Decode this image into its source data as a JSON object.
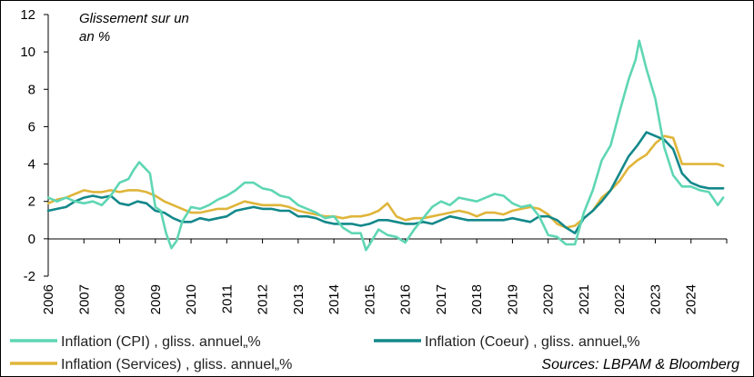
{
  "chart_data": {
    "type": "line",
    "annotation": [
      "Glissement sur un",
      "an %"
    ],
    "source": "Sources: LBPAM & Bloomberg",
    "ylim": [
      -2,
      12
    ],
    "xlim": [
      2006,
      2025
    ],
    "y_ticks": [
      "12",
      "10",
      "8",
      "6",
      "4",
      "2",
      "0",
      "-2"
    ],
    "x_ticks": [
      "2006",
      "2007",
      "2008",
      "2009",
      "2010",
      "2011",
      "2012",
      "2013",
      "2014",
      "2015",
      "2016",
      "2017",
      "2018",
      "2019",
      "2020",
      "2021",
      "2022",
      "2023",
      "2024"
    ],
    "grid": false,
    "series": [
      {
        "name": "Inflation (CPI) , gliss. annuel„%",
        "color": "#5fd6b4",
        "x": [
          2006.0,
          2006.25,
          2006.5,
          2006.75,
          2007.0,
          2007.25,
          2007.5,
          2007.75,
          2008.0,
          2008.25,
          2008.4,
          2008.55,
          2008.7,
          2008.85,
          2009.0,
          2009.15,
          2009.3,
          2009.45,
          2009.6,
          2009.75,
          2010.0,
          2010.25,
          2010.5,
          2010.75,
          2011.0,
          2011.25,
          2011.5,
          2011.75,
          2012.0,
          2012.25,
          2012.5,
          2012.75,
          2013.0,
          2013.25,
          2013.5,
          2013.75,
          2014.0,
          2014.25,
          2014.5,
          2014.75,
          2014.9,
          2015.0,
          2015.25,
          2015.5,
          2015.75,
          2016.0,
          2016.25,
          2016.5,
          2016.75,
          2017.0,
          2017.25,
          2017.5,
          2017.75,
          2018.0,
          2018.25,
          2018.5,
          2018.75,
          2019.0,
          2019.25,
          2019.5,
          2019.75,
          2020.0,
          2020.25,
          2020.5,
          2020.75,
          2021.0,
          2021.25,
          2021.5,
          2021.75,
          2022.0,
          2022.25,
          2022.45,
          2022.55,
          2022.75,
          2023.0,
          2023.25,
          2023.5,
          2023.75,
          2024.0,
          2024.25,
          2024.5,
          2024.75,
          2024.9
        ],
        "values": [
          2.2,
          2.0,
          2.2,
          2.0,
          1.9,
          2.0,
          1.8,
          2.3,
          3.0,
          3.2,
          3.7,
          4.1,
          3.8,
          3.5,
          1.7,
          1.5,
          0.3,
          -0.5,
          -0.1,
          0.9,
          1.7,
          1.6,
          1.8,
          2.1,
          2.3,
          2.6,
          3.0,
          3.0,
          2.7,
          2.6,
          2.3,
          2.2,
          1.8,
          1.6,
          1.4,
          1.1,
          1.2,
          0.6,
          0.3,
          0.3,
          -0.6,
          -0.3,
          0.5,
          0.2,
          0.1,
          -0.2,
          0.5,
          1.1,
          1.7,
          2.0,
          1.8,
          2.2,
          2.1,
          2.0,
          2.2,
          2.4,
          2.3,
          1.9,
          1.7,
          1.8,
          1.2,
          0.2,
          0.1,
          -0.3,
          -0.3,
          1.4,
          2.6,
          4.2,
          5.0,
          6.8,
          8.5,
          9.6,
          10.6,
          9.1,
          7.5,
          4.9,
          3.4,
          2.8,
          2.8,
          2.6,
          2.5,
          1.8,
          2.2
        ]
      },
      {
        "name": "Inflation (Coeur) , gliss. annuel„%",
        "color": "#13888a",
        "x": [
          2006.0,
          2006.25,
          2006.5,
          2006.75,
          2007.0,
          2007.25,
          2007.5,
          2007.75,
          2008.0,
          2008.25,
          2008.5,
          2008.75,
          2009.0,
          2009.25,
          2009.5,
          2009.75,
          2010.0,
          2010.25,
          2010.5,
          2010.75,
          2011.0,
          2011.25,
          2011.5,
          2011.75,
          2012.0,
          2012.25,
          2012.5,
          2012.75,
          2013.0,
          2013.25,
          2013.5,
          2013.75,
          2014.0,
          2014.25,
          2014.5,
          2014.75,
          2015.0,
          2015.25,
          2015.5,
          2015.75,
          2016.0,
          2016.25,
          2016.5,
          2016.75,
          2017.0,
          2017.25,
          2017.5,
          2017.75,
          2018.0,
          2018.25,
          2018.5,
          2018.75,
          2019.0,
          2019.25,
          2019.5,
          2019.75,
          2020.0,
          2020.25,
          2020.5,
          2020.75,
          2021.0,
          2021.25,
          2021.5,
          2021.75,
          2022.0,
          2022.25,
          2022.5,
          2022.75,
          2023.0,
          2023.25,
          2023.5,
          2023.75,
          2024.0,
          2024.25,
          2024.5,
          2024.75,
          2024.9
        ],
        "values": [
          1.5,
          1.6,
          1.7,
          2.0,
          2.2,
          2.3,
          2.2,
          2.3,
          1.9,
          1.8,
          2.0,
          1.9,
          1.5,
          1.4,
          1.1,
          0.9,
          0.9,
          1.1,
          1.0,
          1.1,
          1.2,
          1.5,
          1.6,
          1.7,
          1.6,
          1.6,
          1.5,
          1.5,
          1.2,
          1.2,
          1.1,
          0.9,
          0.8,
          0.8,
          0.8,
          0.7,
          0.8,
          1.0,
          1.0,
          0.9,
          0.8,
          0.8,
          0.9,
          0.8,
          1.0,
          1.2,
          1.1,
          1.0,
          1.0,
          1.0,
          1.0,
          1.0,
          1.1,
          1.0,
          0.9,
          1.2,
          1.2,
          1.0,
          0.6,
          0.3,
          1.1,
          1.5,
          2.0,
          2.6,
          3.5,
          4.4,
          5.0,
          5.7,
          5.5,
          5.3,
          4.8,
          3.5,
          3.0,
          2.8,
          2.7,
          2.7,
          2.7
        ]
      },
      {
        "name": "Inflation (Services) , gliss. annuel„%",
        "color": "#dfb53a",
        "x": [
          2006.0,
          2006.25,
          2006.5,
          2006.75,
          2007.0,
          2007.25,
          2007.5,
          2007.75,
          2008.0,
          2008.25,
          2008.5,
          2008.75,
          2009.0,
          2009.25,
          2009.5,
          2009.75,
          2010.0,
          2010.25,
          2010.5,
          2010.75,
          2011.0,
          2011.25,
          2011.5,
          2011.75,
          2012.0,
          2012.25,
          2012.5,
          2012.75,
          2013.0,
          2013.25,
          2013.5,
          2013.75,
          2014.0,
          2014.25,
          2014.5,
          2014.75,
          2015.0,
          2015.25,
          2015.5,
          2015.75,
          2016.0,
          2016.25,
          2016.5,
          2016.75,
          2017.0,
          2017.25,
          2017.5,
          2017.75,
          2018.0,
          2018.25,
          2018.5,
          2018.75,
          2019.0,
          2019.25,
          2019.5,
          2019.75,
          2020.0,
          2020.25,
          2020.5,
          2020.75,
          2021.0,
          2021.25,
          2021.5,
          2021.75,
          2022.0,
          2022.25,
          2022.5,
          2022.75,
          2023.0,
          2023.25,
          2023.5,
          2023.75,
          2024.0,
          2024.25,
          2024.5,
          2024.75,
          2024.9
        ],
        "values": [
          1.9,
          2.1,
          2.2,
          2.4,
          2.6,
          2.5,
          2.5,
          2.6,
          2.5,
          2.6,
          2.6,
          2.5,
          2.3,
          2.0,
          1.8,
          1.6,
          1.4,
          1.4,
          1.5,
          1.6,
          1.6,
          1.8,
          2.0,
          1.9,
          1.8,
          1.8,
          1.8,
          1.7,
          1.5,
          1.4,
          1.3,
          1.2,
          1.2,
          1.1,
          1.2,
          1.2,
          1.3,
          1.5,
          1.9,
          1.2,
          1.0,
          1.1,
          1.1,
          1.2,
          1.3,
          1.4,
          1.5,
          1.4,
          1.2,
          1.4,
          1.4,
          1.3,
          1.5,
          1.6,
          1.7,
          1.6,
          1.3,
          0.8,
          0.6,
          0.7,
          1.1,
          1.5,
          2.2,
          2.6,
          3.1,
          3.8,
          4.2,
          4.5,
          5.1,
          5.5,
          5.4,
          4.0,
          4.0,
          4.0,
          4.0,
          4.0,
          3.9
        ]
      }
    ]
  }
}
